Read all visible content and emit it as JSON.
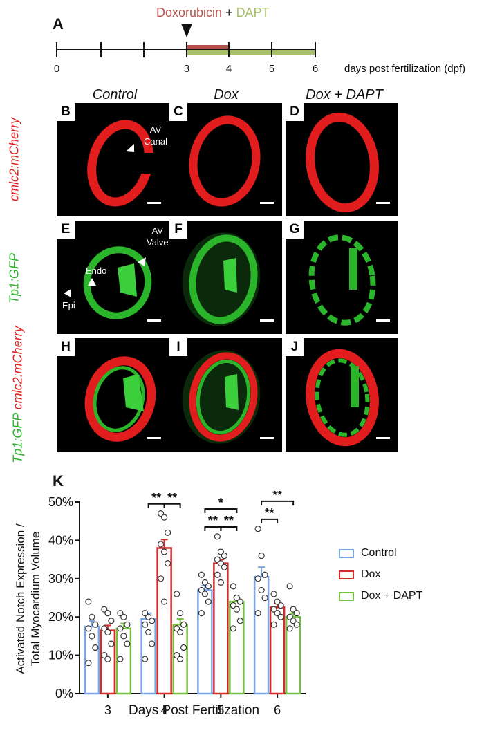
{
  "panel_a": {
    "letter": "A",
    "treatment_dox": "Doxorubicin",
    "treatment_plus": " + ",
    "treatment_dapt": "DAPT",
    "axis_label": "days post fertilization (dpf)",
    "tick_labels": [
      "0",
      "",
      "",
      "3",
      "4",
      "5",
      "6"
    ],
    "colors": {
      "dox": "#b5524d",
      "dapt": "#a9c16a"
    }
  },
  "columns": [
    "Control",
    "Dox",
    "Dox + DAPT"
  ],
  "rows": [
    {
      "label": "cmlc2:mCherry",
      "color": "#e11d1d"
    },
    {
      "label": "Tp1:GFP",
      "color": "#2bb52b"
    },
    {
      "label_green": "Tp1:GFP",
      "label_red": "cmlc2:mCherry"
    }
  ],
  "panels": [
    "B",
    "C",
    "D",
    "E",
    "F",
    "G",
    "H",
    "I",
    "J"
  ],
  "annotations": {
    "av_canal": [
      "AV",
      "Canal"
    ],
    "av_valve": [
      "AV",
      "Valve"
    ],
    "endo": "Endo",
    "epi": "Epi"
  },
  "chart_data": {
    "type": "bar",
    "panel_letter": "K",
    "categories": [
      "3",
      "4",
      "5",
      "6"
    ],
    "xlabel": "Days Post Fertilization",
    "ylabel": [
      "Activated Notch Expression /",
      "Total Myocardium Volume"
    ],
    "ylim": [
      0,
      50
    ],
    "yticks": [
      0,
      10,
      20,
      30,
      40,
      50
    ],
    "ytick_labels": [
      "0%",
      "10%",
      "20%",
      "30%",
      "40%",
      "50%"
    ],
    "series": [
      {
        "name": "Control",
        "color": "#7aa6e6",
        "values": [
          17.5,
          19.5,
          27,
          30.5
        ],
        "errors": [
          1.5,
          1.5,
          1.2,
          2.5
        ],
        "points": [
          [
            24,
            20,
            18,
            17,
            15,
            12,
            8
          ],
          [
            21,
            20,
            19,
            18,
            16,
            13,
            9
          ],
          [
            31,
            29,
            28,
            27,
            26,
            24,
            21
          ],
          [
            43,
            36,
            31,
            30,
            27,
            25,
            21
          ]
        ]
      },
      {
        "name": "Dox",
        "color": "#d62a2a",
        "values": [
          16.5,
          38,
          34,
          22.5
        ],
        "errors": [
          1.3,
          2.2,
          1,
          1
        ],
        "points": [
          [
            22,
            21,
            19,
            17,
            16,
            13,
            10,
            9
          ],
          [
            47,
            46,
            42,
            39,
            37,
            34,
            30,
            24
          ],
          [
            41,
            37,
            36,
            35,
            34,
            33,
            31,
            29
          ],
          [
            26,
            24,
            23,
            22,
            21,
            20,
            18
          ]
        ]
      },
      {
        "name": "Dox + DAPT",
        "color": "#76c043",
        "values": [
          17,
          18,
          24,
          20
        ],
        "errors": [
          1.3,
          1.5,
          1,
          1
        ],
        "points": [
          [
            21,
            20,
            18,
            17,
            15,
            13,
            9
          ],
          [
            26,
            21,
            18,
            17,
            16,
            12,
            10,
            9
          ],
          [
            28,
            25,
            24,
            23,
            22,
            19,
            17
          ],
          [
            28,
            22,
            21,
            20,
            19,
            18,
            17
          ]
        ]
      }
    ],
    "significance": [
      {
        "category": 1,
        "from": 0,
        "to": 1,
        "label": "**",
        "level": 0
      },
      {
        "category": 1,
        "from": 1,
        "to": 2,
        "label": "**",
        "level": 0
      },
      {
        "category": 2,
        "from": 0,
        "to": 1,
        "label": "**",
        "level": 0
      },
      {
        "category": 2,
        "from": 1,
        "to": 2,
        "label": "**",
        "level": 0
      },
      {
        "category": 2,
        "from": 0,
        "to": 2,
        "label": "*",
        "level": 1
      },
      {
        "category": 3,
        "from": 0,
        "to": 1,
        "label": "**",
        "level": 0
      },
      {
        "category": 3,
        "from": 0,
        "to": 2,
        "label": "**",
        "level": 1
      }
    ],
    "legend": [
      "Control",
      "Dox",
      "Dox + DAPT"
    ],
    "legend_placement": "right"
  }
}
